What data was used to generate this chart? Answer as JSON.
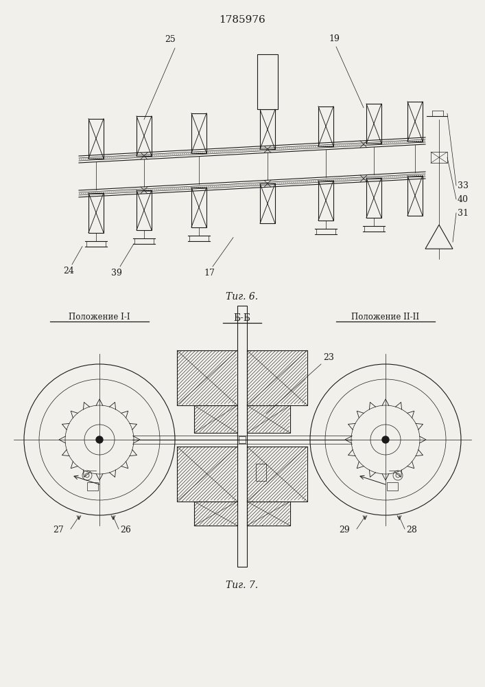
{
  "title": "1785976",
  "fig6_label": "Τиг. 6.",
  "fig7_label": "Τиг. 7.",
  "bb_label": "Б-Б",
  "pos1_label": "Положение I-I",
  "pos2_label": "Положение II-II",
  "line_color": "#1a1a1a",
  "bg_color": "#f2f0eb"
}
